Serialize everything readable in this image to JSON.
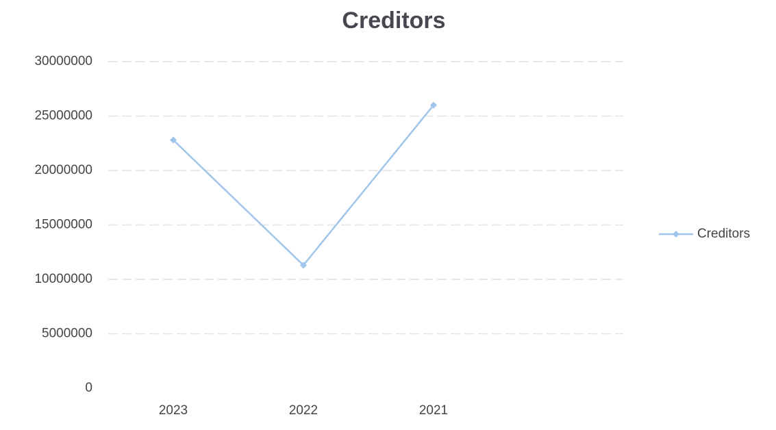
{
  "chart_data": {
    "type": "line",
    "title": "Creditors",
    "categories": [
      "2023",
      "2022",
      "2021"
    ],
    "series": [
      {
        "name": "Creditors",
        "color": "#9fc5ea",
        "values": [
          22800000,
          11300000,
          26000000
        ]
      }
    ],
    "ylim": [
      0,
      30000000
    ],
    "yticks": [
      0,
      5000000,
      10000000,
      15000000,
      20000000,
      25000000,
      30000000
    ],
    "grid": true,
    "legend": "right"
  }
}
